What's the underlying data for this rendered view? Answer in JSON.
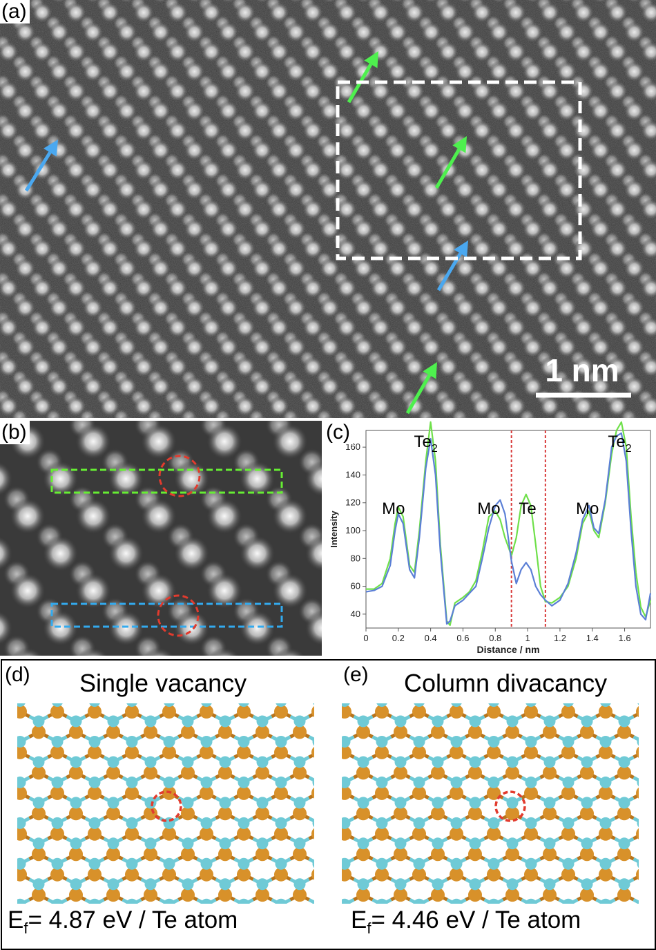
{
  "panels": {
    "a": {
      "label": "(a)",
      "scale_bar": "1 nm",
      "arrow_colors": {
        "green": "#4ef04e",
        "blue": "#4aa8f0"
      },
      "box_color": "#ffffff"
    },
    "b": {
      "label": "(b)",
      "box_colors": [
        "#66ee33",
        "#33aaee"
      ],
      "circle_color": "#e23b2e"
    },
    "c": {
      "label": "(c)"
    },
    "d": {
      "label": "(d)",
      "title": "Single vacancy",
      "ef_symbol": "E",
      "ef_sub": "f",
      "ef_value": "= 4.87 eV / Te atom"
    },
    "e": {
      "label": "(e)",
      "title": "Column divacancy",
      "ef_symbol": "E",
      "ef_sub": "f",
      "ef_value": "= 4.46 eV / Te atom"
    }
  },
  "atom_colors": {
    "Mo": "#d8912a",
    "Te": "#6fcad6"
  },
  "chart_data": {
    "type": "line",
    "xlabel": "Distance / nm",
    "ylabel": "Intensity",
    "xlim": [
      0,
      1.76
    ],
    "ylim": [
      30,
      172
    ],
    "xticks": [
      "0",
      "0.2",
      "0.4",
      "0.6",
      "0.8",
      "1",
      "1.2",
      "1.4",
      "1.6"
    ],
    "yticks": [
      "40",
      "60",
      "80",
      "100",
      "120",
      "140",
      "160"
    ],
    "vlines": [
      0.9,
      1.11
    ],
    "peak_labels": [
      {
        "text": "Mo",
        "x": 0.17,
        "y": 112
      },
      {
        "text": "Te",
        "sub": "2",
        "x": 0.37,
        "y": 160
      },
      {
        "text": "Mo",
        "x": 0.76,
        "y": 112
      },
      {
        "text": "Te",
        "x": 1.0,
        "y": 112
      },
      {
        "text": "Mo",
        "x": 1.37,
        "y": 112
      },
      {
        "text": "Te",
        "sub": "2",
        "x": 1.57,
        "y": 160
      }
    ],
    "series": [
      {
        "color": "#6fe04a",
        "x": [
          0,
          0.05,
          0.1,
          0.15,
          0.18,
          0.2,
          0.23,
          0.27,
          0.3,
          0.33,
          0.37,
          0.4,
          0.43,
          0.46,
          0.5,
          0.52,
          0.55,
          0.6,
          0.64,
          0.68,
          0.72,
          0.76,
          0.8,
          0.83,
          0.86,
          0.9,
          0.93,
          0.96,
          0.99,
          1.02,
          1.05,
          1.08,
          1.11,
          1.15,
          1.2,
          1.25,
          1.3,
          1.34,
          1.38,
          1.41,
          1.44,
          1.48,
          1.52,
          1.55,
          1.58,
          1.61,
          1.64,
          1.67,
          1.7,
          1.73,
          1.76
        ],
        "y": [
          58,
          58,
          62,
          80,
          105,
          117,
          110,
          75,
          70,
          100,
          150,
          178,
          150,
          90,
          35,
          32,
          48,
          52,
          56,
          64,
          85,
          110,
          114,
          108,
          95,
          82,
          95,
          118,
          126,
          118,
          90,
          60,
          49,
          48,
          52,
          60,
          80,
          105,
          114,
          100,
          95,
          120,
          155,
          172,
          178,
          160,
          110,
          70,
          45,
          38,
          50
        ]
      },
      {
        "color": "#5b7fd6",
        "x": [
          0,
          0.05,
          0.1,
          0.15,
          0.18,
          0.2,
          0.23,
          0.27,
          0.3,
          0.33,
          0.37,
          0.4,
          0.43,
          0.46,
          0.5,
          0.52,
          0.55,
          0.6,
          0.64,
          0.68,
          0.72,
          0.76,
          0.8,
          0.83,
          0.86,
          0.9,
          0.93,
          0.96,
          0.99,
          1.02,
          1.05,
          1.08,
          1.11,
          1.15,
          1.2,
          1.25,
          1.3,
          1.34,
          1.38,
          1.41,
          1.44,
          1.48,
          1.52,
          1.55,
          1.58,
          1.61,
          1.64,
          1.67,
          1.7,
          1.73,
          1.76
        ],
        "y": [
          56,
          57,
          60,
          75,
          100,
          112,
          105,
          72,
          66,
          95,
          145,
          166,
          140,
          85,
          33,
          35,
          46,
          50,
          55,
          60,
          80,
          102,
          118,
          122,
          112,
          78,
          62,
          72,
          77,
          72,
          60,
          54,
          50,
          46,
          50,
          62,
          84,
          108,
          118,
          102,
          98,
          122,
          160,
          168,
          170,
          150,
          100,
          60,
          40,
          36,
          55
        ]
      }
    ]
  }
}
